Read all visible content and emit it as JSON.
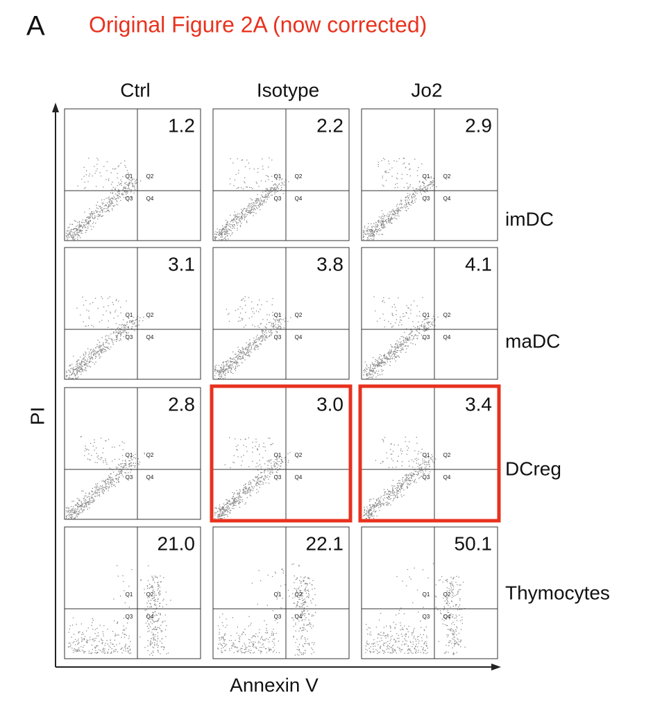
{
  "panel_label": "A",
  "title": "Original Figure 2A (now corrected)",
  "y_axis_label": "PI",
  "x_axis_label": "Annexin V",
  "columns": [
    "Ctrl",
    "Isotype",
    "Jo2"
  ],
  "quadrant_labels": [
    "Q1",
    "Q2",
    "Q3",
    "Q4"
  ],
  "rows": [
    {
      "label": "imDC",
      "values": [
        "1.2",
        "2.2",
        "2.9"
      ],
      "highlight": [
        false,
        false,
        false
      ]
    },
    {
      "label": "maDC",
      "values": [
        "3.1",
        "3.8",
        "4.1"
      ],
      "highlight": [
        false,
        false,
        false
      ]
    },
    {
      "label": "DCreg",
      "values": [
        "2.8",
        "3.0",
        "3.4"
      ],
      "highlight": [
        false,
        true,
        true
      ]
    },
    {
      "label": "Thymocytes",
      "values": [
        "21.0",
        "22.1",
        "50.1"
      ],
      "highlight": [
        false,
        false,
        false
      ]
    }
  ]
}
